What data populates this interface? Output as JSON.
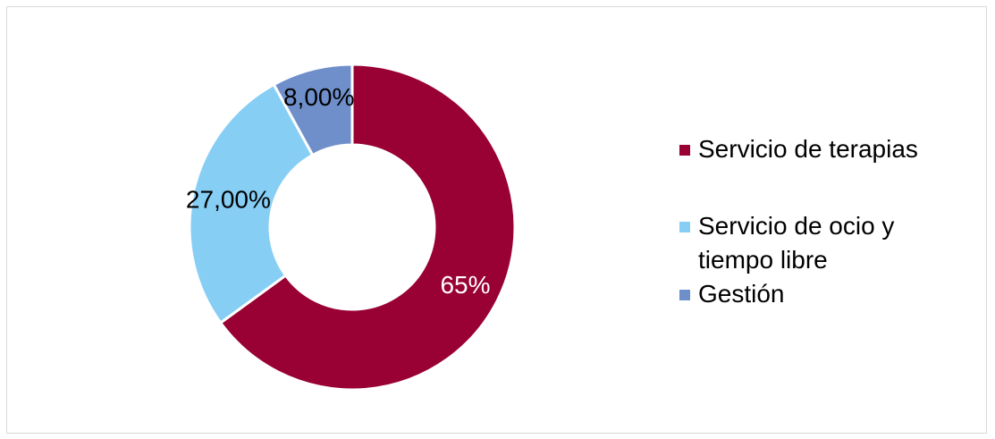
{
  "chart_data": {
    "type": "pie",
    "variant": "donut",
    "series": [
      {
        "label": "Servicio de terapias",
        "value": 65,
        "data_label": "65%",
        "color": "#990033"
      },
      {
        "label": "Servicio de ocio y tiempo libre",
        "value": 27,
        "data_label": "27,00%",
        "color": "#87CEF5"
      },
      {
        "label": "Gestión",
        "value": 8,
        "data_label": "8,00%",
        "color": "#6F8FCB"
      }
    ],
    "legend_position": "right"
  }
}
